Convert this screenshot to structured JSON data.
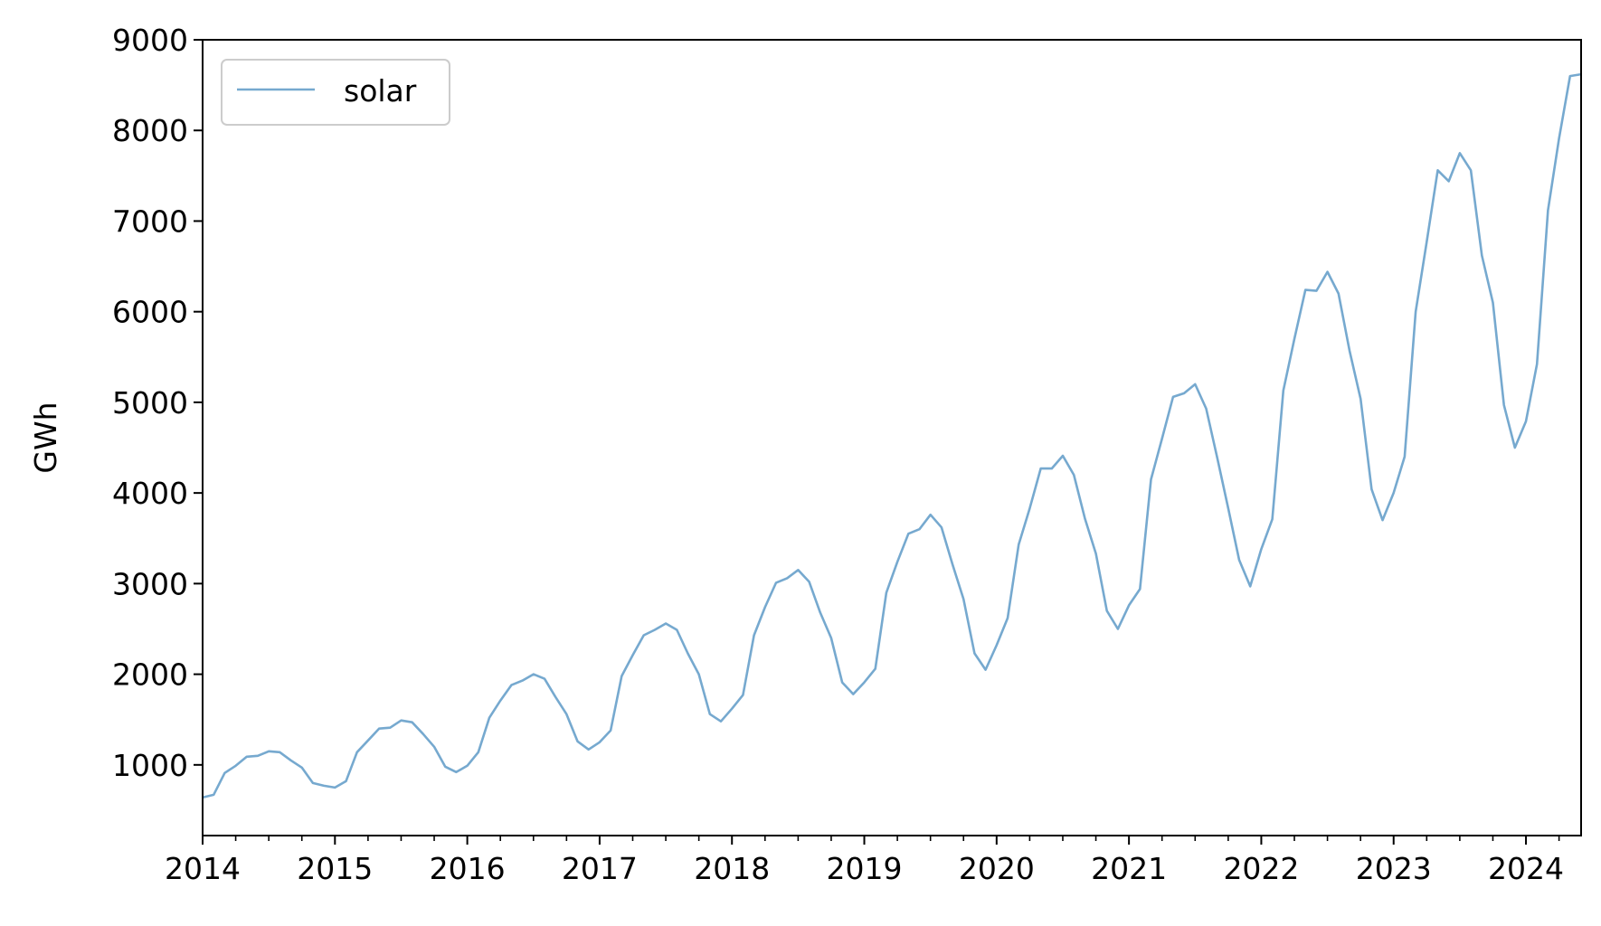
{
  "chart_data": {
    "type": "line",
    "title": "",
    "xlabel": "",
    "ylabel": "GWh",
    "xlim": [
      "2014-01",
      "2024-06"
    ],
    "ylim": [
      220,
      9000
    ],
    "y_ticks": [
      1000,
      2000,
      3000,
      4000,
      5000,
      6000,
      7000,
      8000,
      9000
    ],
    "x_ticks": [
      "2014",
      "2015",
      "2016",
      "2017",
      "2018",
      "2019",
      "2020",
      "2021",
      "2022",
      "2023",
      "2024"
    ],
    "x_minor_ticks": "quarterly",
    "grid": false,
    "legend": {
      "position": "top-left",
      "entries": [
        "solar"
      ]
    },
    "line_color": "#76A9CF",
    "series": [
      {
        "name": "solar",
        "x": [
          "2014-01",
          "2014-02",
          "2014-03",
          "2014-04",
          "2014-05",
          "2014-06",
          "2014-07",
          "2014-08",
          "2014-09",
          "2014-10",
          "2014-11",
          "2014-12",
          "2015-01",
          "2015-02",
          "2015-03",
          "2015-04",
          "2015-05",
          "2015-06",
          "2015-07",
          "2015-08",
          "2015-09",
          "2015-10",
          "2015-11",
          "2015-12",
          "2016-01",
          "2016-02",
          "2016-03",
          "2016-04",
          "2016-05",
          "2016-06",
          "2016-07",
          "2016-08",
          "2016-09",
          "2016-10",
          "2016-11",
          "2016-12",
          "2017-01",
          "2017-02",
          "2017-03",
          "2017-04",
          "2017-05",
          "2017-06",
          "2017-07",
          "2017-08",
          "2017-09",
          "2017-10",
          "2017-11",
          "2017-12",
          "2018-01",
          "2018-02",
          "2018-03",
          "2018-04",
          "2018-05",
          "2018-06",
          "2018-07",
          "2018-08",
          "2018-09",
          "2018-10",
          "2018-11",
          "2018-12",
          "2019-01",
          "2019-02",
          "2019-03",
          "2019-04",
          "2019-05",
          "2019-06",
          "2019-07",
          "2019-08",
          "2019-09",
          "2019-10",
          "2019-11",
          "2019-12",
          "2020-01",
          "2020-02",
          "2020-03",
          "2020-04",
          "2020-05",
          "2020-06",
          "2020-07",
          "2020-08",
          "2020-09",
          "2020-10",
          "2020-11",
          "2020-12",
          "2021-01",
          "2021-02",
          "2021-03",
          "2021-04",
          "2021-05",
          "2021-06",
          "2021-07",
          "2021-08",
          "2021-09",
          "2021-10",
          "2021-11",
          "2021-12",
          "2022-01",
          "2022-02",
          "2022-03",
          "2022-04",
          "2022-05",
          "2022-06",
          "2022-07",
          "2022-08",
          "2022-09",
          "2022-10",
          "2022-11",
          "2022-12",
          "2023-01",
          "2023-02",
          "2023-03",
          "2023-04",
          "2023-05",
          "2023-06",
          "2023-07",
          "2023-08",
          "2023-09",
          "2023-10",
          "2023-11",
          "2023-12",
          "2024-01",
          "2024-02",
          "2024-03",
          "2024-04",
          "2024-05",
          "2024-06"
        ],
        "values": [
          640,
          670,
          910,
          990,
          1090,
          1100,
          1150,
          1140,
          1050,
          970,
          800,
          770,
          750,
          820,
          1140,
          1270,
          1400,
          1410,
          1490,
          1470,
          1340,
          1200,
          980,
          920,
          990,
          1140,
          1520,
          1710,
          1880,
          1930,
          2000,
          1950,
          1750,
          1560,
          1260,
          1170,
          1250,
          1380,
          1980,
          2210,
          2430,
          2490,
          2560,
          2490,
          2230,
          2000,
          1560,
          1480,
          1620,
          1770,
          2430,
          2740,
          3010,
          3060,
          3150,
          3020,
          2680,
          2400,
          1910,
          1780,
          1910,
          2060,
          2900,
          3240,
          3550,
          3600,
          3760,
          3620,
          3210,
          2830,
          2230,
          2050,
          2320,
          2620,
          3430,
          3830,
          4270,
          4270,
          4410,
          4200,
          3720,
          3330,
          2700,
          2500,
          2760,
          2940,
          4150,
          4600,
          5060,
          5100,
          5200,
          4930,
          4390,
          3830,
          3260,
          2970,
          3380,
          3710,
          5130,
          5700,
          6240,
          6230,
          6440,
          6200,
          5570,
          5040,
          4040,
          3700,
          4000,
          4400,
          6000,
          6770,
          7560,
          7440,
          7750,
          7560,
          6620,
          6100,
          4970,
          4500,
          4790,
          5420,
          7120,
          7910,
          8600,
          8620
        ]
      }
    ]
  }
}
